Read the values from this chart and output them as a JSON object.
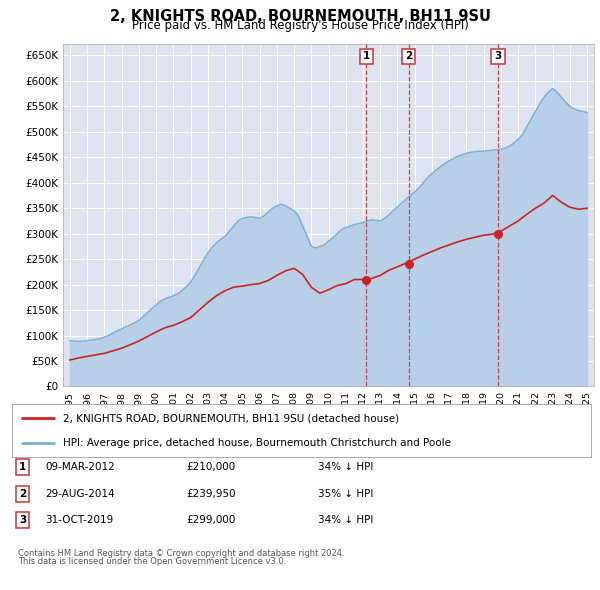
{
  "title": "2, KNIGHTS ROAD, BOURNEMOUTH, BH11 9SU",
  "subtitle": "Price paid vs. HM Land Registry's House Price Index (HPI)",
  "ytick_labels": [
    "£0",
    "£50K",
    "£100K",
    "£150K",
    "£200K",
    "£250K",
    "£300K",
    "£350K",
    "£400K",
    "£450K",
    "£500K",
    "£550K",
    "£600K",
    "£650K"
  ],
  "ytick_values": [
    0,
    50000,
    100000,
    150000,
    200000,
    250000,
    300000,
    350000,
    400000,
    450000,
    500000,
    550000,
    600000,
    650000
  ],
  "xlim_start": 1994.6,
  "xlim_end": 2025.4,
  "ylim_bottom": 0,
  "ylim_top": 672000,
  "hpi_years": [
    1995.0,
    1995.25,
    1995.5,
    1995.75,
    1996.0,
    1996.25,
    1996.5,
    1996.75,
    1997.0,
    1997.25,
    1997.5,
    1997.75,
    1998.0,
    1998.25,
    1998.5,
    1998.75,
    1999.0,
    1999.25,
    1999.5,
    1999.75,
    2000.0,
    2000.25,
    2000.5,
    2000.75,
    2001.0,
    2001.25,
    2001.5,
    2001.75,
    2002.0,
    2002.25,
    2002.5,
    2002.75,
    2003.0,
    2003.25,
    2003.5,
    2003.75,
    2004.0,
    2004.25,
    2004.5,
    2004.75,
    2005.0,
    2005.25,
    2005.5,
    2005.75,
    2006.0,
    2006.25,
    2006.5,
    2006.75,
    2007.0,
    2007.25,
    2007.5,
    2007.75,
    2008.0,
    2008.25,
    2008.5,
    2008.75,
    2009.0,
    2009.25,
    2009.5,
    2009.75,
    2010.0,
    2010.25,
    2010.5,
    2010.75,
    2011.0,
    2011.25,
    2011.5,
    2011.75,
    2012.0,
    2012.25,
    2012.5,
    2012.75,
    2013.0,
    2013.25,
    2013.5,
    2013.75,
    2014.0,
    2014.25,
    2014.5,
    2014.75,
    2015.0,
    2015.25,
    2015.5,
    2015.75,
    2016.0,
    2016.25,
    2016.5,
    2016.75,
    2017.0,
    2017.25,
    2017.5,
    2017.75,
    2018.0,
    2018.25,
    2018.5,
    2018.75,
    2019.0,
    2019.25,
    2019.5,
    2019.75,
    2020.0,
    2020.25,
    2020.5,
    2020.75,
    2021.0,
    2021.25,
    2021.5,
    2021.75,
    2022.0,
    2022.25,
    2022.5,
    2022.75,
    2023.0,
    2023.25,
    2023.5,
    2023.75,
    2024.0,
    2024.25,
    2024.5,
    2024.75,
    2025.0
  ],
  "hpi_values": [
    90000,
    89000,
    88500,
    89000,
    90000,
    91000,
    92500,
    94000,
    97000,
    100000,
    105000,
    109000,
    113000,
    117000,
    121000,
    125000,
    130000,
    137000,
    145000,
    153000,
    160000,
    167000,
    172000,
    175000,
    178000,
    182000,
    188000,
    196000,
    205000,
    218000,
    233000,
    248000,
    262000,
    273000,
    282000,
    289000,
    295000,
    305000,
    315000,
    325000,
    330000,
    332000,
    333000,
    332000,
    330000,
    335000,
    342000,
    350000,
    355000,
    358000,
    355000,
    350000,
    345000,
    335000,
    315000,
    295000,
    275000,
    272000,
    275000,
    278000,
    285000,
    292000,
    300000,
    308000,
    312000,
    315000,
    318000,
    320000,
    322000,
    325000,
    327000,
    326000,
    325000,
    330000,
    337000,
    345000,
    353000,
    360000,
    368000,
    375000,
    382000,
    390000,
    400000,
    410000,
    418000,
    425000,
    432000,
    438000,
    443000,
    448000,
    452000,
    455000,
    458000,
    460000,
    461000,
    462000,
    462000,
    463000,
    464000,
    465000,
    466000,
    468000,
    472000,
    478000,
    485000,
    495000,
    510000,
    525000,
    540000,
    555000,
    568000,
    578000,
    585000,
    578000,
    568000,
    558000,
    550000,
    545000,
    542000,
    540000,
    538000
  ],
  "price_years": [
    1995.0,
    1995.5,
    1996.0,
    1996.5,
    1997.0,
    1997.5,
    1998.0,
    1998.5,
    1999.0,
    1999.5,
    2000.0,
    2000.5,
    2001.0,
    2001.5,
    2002.0,
    2002.5,
    2003.0,
    2003.5,
    2004.0,
    2004.5,
    2005.0,
    2005.5,
    2006.0,
    2006.5,
    2007.0,
    2007.5,
    2008.0,
    2008.5,
    2009.0,
    2009.5,
    2010.0,
    2010.5,
    2011.0,
    2011.5,
    2012.0,
    2012.5,
    2013.0,
    2013.5,
    2014.0,
    2014.5,
    2015.0,
    2015.5,
    2016.0,
    2016.5,
    2017.0,
    2017.5,
    2018.0,
    2018.5,
    2019.0,
    2019.5,
    2020.0,
    2020.5,
    2021.0,
    2021.5,
    2022.0,
    2022.5,
    2023.0,
    2023.5,
    2024.0,
    2024.5,
    2025.0
  ],
  "price_values": [
    52000,
    56000,
    59000,
    62000,
    65000,
    70000,
    75000,
    82000,
    89000,
    98000,
    107000,
    115000,
    120000,
    127000,
    135000,
    150000,
    165000,
    178000,
    188000,
    195000,
    197000,
    200000,
    202000,
    208000,
    218000,
    227000,
    232000,
    220000,
    195000,
    183000,
    190000,
    198000,
    202000,
    210000,
    210000,
    212000,
    218000,
    228000,
    235000,
    242000,
    250000,
    258000,
    265000,
    272000,
    278000,
    284000,
    289000,
    293000,
    297000,
    299000,
    305000,
    315000,
    325000,
    338000,
    350000,
    360000,
    375000,
    362000,
    352000,
    348000,
    350000
  ],
  "sale_points": [
    {
      "label": "1",
      "year": 2012.19,
      "price": 210000
    },
    {
      "label": "2",
      "year": 2014.66,
      "price": 239950
    },
    {
      "label": "3",
      "year": 2019.83,
      "price": 299000
    }
  ],
  "legend_line1": "2, KNIGHTS ROAD, BOURNEMOUTH, BH11 9SU (detached house)",
  "legend_line2": "HPI: Average price, detached house, Bournemouth Christchurch and Poole",
  "footer1": "Contains HM Land Registry data © Crown copyright and database right 2024.",
  "footer2": "This data is licensed under the Open Government Licence v3.0.",
  "table_rows": [
    {
      "num": "1",
      "date": "09-MAR-2012",
      "price": "£210,000",
      "pct": "34% ↓ HPI"
    },
    {
      "num": "2",
      "date": "29-AUG-2014",
      "price": "£239,950",
      "pct": "35% ↓ HPI"
    },
    {
      "num": "3",
      "date": "31-OCT-2019",
      "price": "£299,000",
      "pct": "34% ↓ HPI"
    }
  ],
  "plot_bg_color": "#dde3ef",
  "grid_color": "#ffffff",
  "hpi_color": "#7aadd4",
  "hpi_fill_color": "#b8cfe8",
  "price_color": "#cc2222",
  "dashed_color": "#cc3333"
}
